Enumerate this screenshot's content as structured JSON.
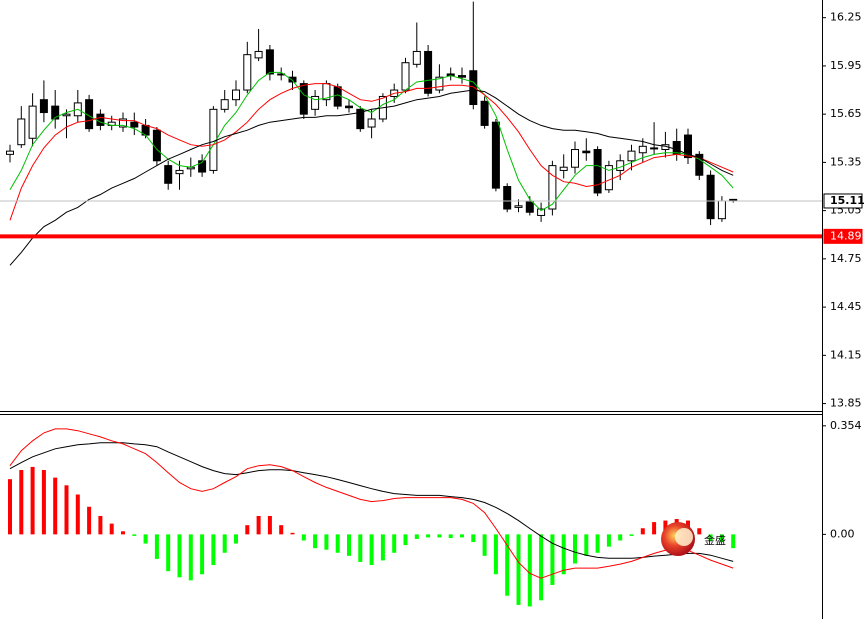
{
  "chart_data": [
    {
      "type": "candlestick",
      "ylim": [
        13.81,
        16.36
      ],
      "yticks": [
        16.25,
        15.95,
        15.65,
        15.35,
        15.05,
        14.75,
        14.45,
        14.15,
        13.85
      ],
      "up_color": "#ffffff",
      "down_color": "#000000",
      "wick_color": "#000000",
      "open": [
        15.4,
        15.46,
        15.5,
        15.74,
        15.7,
        15.64,
        15.64,
        15.74,
        15.65,
        15.58,
        15.57,
        15.6,
        15.58,
        15.55,
        15.33,
        15.28,
        15.31,
        15.36,
        15.3,
        15.68,
        15.74,
        15.8,
        16.0,
        16.05,
        15.9,
        15.88,
        15.84,
        15.68,
        15.74,
        15.82,
        15.7,
        15.68,
        15.57,
        15.62,
        15.76,
        15.8,
        15.96,
        16.04,
        15.8,
        15.9,
        15.89,
        15.92,
        15.73,
        15.6,
        15.2,
        15.07,
        15.11,
        15.02,
        15.06,
        15.3,
        15.32,
        15.42,
        15.43,
        15.18,
        15.3,
        15.36,
        15.41,
        15.44,
        15.43,
        15.48,
        15.52,
        15.4,
        15.27,
        15.0,
        15.12
      ],
      "high": [
        15.46,
        15.7,
        15.78,
        15.86,
        15.8,
        15.68,
        15.8,
        15.77,
        15.68,
        15.64,
        15.66,
        15.66,
        15.62,
        15.57,
        15.36,
        15.36,
        15.38,
        15.4,
        15.7,
        15.8,
        15.86,
        16.1,
        16.18,
        16.08,
        15.94,
        15.92,
        15.86,
        15.8,
        15.86,
        15.84,
        15.74,
        15.7,
        15.68,
        15.78,
        15.84,
        16.0,
        16.22,
        16.08,
        15.96,
        15.94,
        15.94,
        16.35,
        15.76,
        15.62,
        15.22,
        15.12,
        15.14,
        15.1,
        15.36,
        15.4,
        15.48,
        15.5,
        15.45,
        15.36,
        15.4,
        15.46,
        15.5,
        15.6,
        15.54,
        15.56,
        15.56,
        15.42,
        15.3,
        15.14,
        15.12
      ],
      "low": [
        15.35,
        15.44,
        15.45,
        15.6,
        15.56,
        15.5,
        15.6,
        15.54,
        15.55,
        15.55,
        15.54,
        15.52,
        15.5,
        15.33,
        15.18,
        15.18,
        15.26,
        15.26,
        15.28,
        15.66,
        15.7,
        15.78,
        15.98,
        15.86,
        15.86,
        15.8,
        15.62,
        15.64,
        15.7,
        15.68,
        15.66,
        15.54,
        15.5,
        15.6,
        15.72,
        15.78,
        15.94,
        15.76,
        15.78,
        15.86,
        15.84,
        15.68,
        15.56,
        15.17,
        15.04,
        15.04,
        15.02,
        14.98,
        15.02,
        15.25,
        15.28,
        15.36,
        15.14,
        15.16,
        15.24,
        15.3,
        15.35,
        15.4,
        15.38,
        15.36,
        15.34,
        15.24,
        14.96,
        14.98,
        15.1
      ],
      "close": [
        15.42,
        15.62,
        15.7,
        15.66,
        15.62,
        15.65,
        15.72,
        15.56,
        15.58,
        15.6,
        15.62,
        15.57,
        15.52,
        15.36,
        15.22,
        15.3,
        15.32,
        15.29,
        15.68,
        15.74,
        15.8,
        16.02,
        16.04,
        15.9,
        15.9,
        15.85,
        15.65,
        15.76,
        15.84,
        15.7,
        15.69,
        15.56,
        15.62,
        15.76,
        15.8,
        15.97,
        16.04,
        15.78,
        15.88,
        15.89,
        15.88,
        15.71,
        15.58,
        15.19,
        15.06,
        15.08,
        15.04,
        15.06,
        15.33,
        15.32,
        15.43,
        15.41,
        15.16,
        15.33,
        15.36,
        15.42,
        15.45,
        15.44,
        15.46,
        15.4,
        15.38,
        15.27,
        15.0,
        15.11,
        15.11
      ],
      "lines": [
        {
          "color": "#00c000",
          "values": [
            15.18,
            15.3,
            15.46,
            15.55,
            15.63,
            15.66,
            15.68,
            15.64,
            15.6,
            15.58,
            15.58,
            15.56,
            15.52,
            15.43,
            15.37,
            15.33,
            15.32,
            15.35,
            15.46,
            15.58,
            15.66,
            15.77,
            15.86,
            15.91,
            15.91,
            15.86,
            15.77,
            15.74,
            15.75,
            15.77,
            15.74,
            15.69,
            15.66,
            15.71,
            15.74,
            15.8,
            15.85,
            15.86,
            15.87,
            15.89,
            15.87,
            15.85,
            15.77,
            15.64,
            15.43,
            15.24,
            15.12,
            15.05,
            15.09,
            15.18,
            15.27,
            15.33,
            15.33,
            15.3,
            15.32,
            15.35,
            15.38,
            15.4,
            15.41,
            15.41,
            15.4,
            15.37,
            15.32,
            15.27,
            15.19
          ]
        },
        {
          "color": "#ff0000",
          "values": [
            14.99,
            15.19,
            15.33,
            15.44,
            15.52,
            15.57,
            15.6,
            15.61,
            15.63,
            15.62,
            15.61,
            15.61,
            15.58,
            15.56,
            15.52,
            15.49,
            15.46,
            15.45,
            15.46,
            15.49,
            15.54,
            15.6,
            15.68,
            15.74,
            15.78,
            15.81,
            15.83,
            15.84,
            15.84,
            15.82,
            15.78,
            15.74,
            15.73,
            15.75,
            15.78,
            15.79,
            15.81,
            15.81,
            15.82,
            15.83,
            15.83,
            15.82,
            15.77,
            15.71,
            15.63,
            15.54,
            15.43,
            15.33,
            15.27,
            15.23,
            15.22,
            15.2,
            15.21,
            15.24,
            15.27,
            15.32,
            15.35,
            15.38,
            15.39,
            15.4,
            15.39,
            15.38,
            15.35,
            15.32,
            15.29
          ]
        },
        {
          "color": "#000000",
          "values": [
            14.71,
            14.79,
            14.88,
            14.95,
            14.99,
            15.04,
            15.07,
            15.12,
            15.15,
            15.19,
            15.22,
            15.25,
            15.29,
            15.33,
            15.37,
            15.4,
            15.43,
            15.46,
            15.48,
            15.51,
            15.53,
            15.55,
            15.58,
            15.6,
            15.61,
            15.62,
            15.63,
            15.63,
            15.64,
            15.64,
            15.65,
            15.66,
            15.68,
            15.69,
            15.7,
            15.72,
            15.74,
            15.75,
            15.76,
            15.78,
            15.79,
            15.8,
            15.79,
            15.75,
            15.7,
            15.65,
            15.61,
            15.58,
            15.56,
            15.55,
            15.55,
            15.54,
            15.53,
            15.51,
            15.5,
            15.49,
            15.48,
            15.46,
            15.45,
            15.43,
            15.4,
            15.38,
            15.34,
            15.3,
            15.27
          ]
        }
      ],
      "hlines": [
        {
          "value": 15.11,
          "color": "#c0c0c0",
          "width": 1
        },
        {
          "value": 14.89,
          "color": "#ff0000",
          "width": 4
        }
      ]
    },
    {
      "type": "macd",
      "ylim": [
        -0.276,
        0.386
      ],
      "yticks": [
        0.354,
        {
          "value": 0,
          "label": "0.00"
        }
      ],
      "up_color": "#ff0000",
      "down_color": "#00ff00",
      "histogram": [
        0.18,
        0.21,
        0.22,
        0.21,
        0.185,
        0.16,
        0.13,
        0.09,
        0.06,
        0.035,
        0.01,
        -0.005,
        -0.03,
        -0.08,
        -0.12,
        -0.14,
        -0.15,
        -0.13,
        -0.1,
        -0.06,
        -0.03,
        0.03,
        0.06,
        0.06,
        0.03,
        0.005,
        -0.02,
        -0.045,
        -0.05,
        -0.06,
        -0.07,
        -0.09,
        -0.1,
        -0.085,
        -0.06,
        -0.035,
        -0.015,
        -0.01,
        -0.01,
        -0.012,
        -0.01,
        -0.025,
        -0.07,
        -0.13,
        -0.2,
        -0.23,
        -0.235,
        -0.215,
        -0.165,
        -0.13,
        -0.095,
        -0.07,
        -0.06,
        -0.04,
        -0.02,
        -0.005,
        0.02,
        0.04,
        0.045,
        0.05,
        0.045,
        0.02,
        -0.02,
        -0.025,
        -0.045
      ],
      "lines": [
        {
          "color": "#000000",
          "values": [
            0.214,
            0.234,
            0.253,
            0.266,
            0.279,
            0.286,
            0.292,
            0.295,
            0.299,
            0.299,
            0.299,
            0.295,
            0.292,
            0.286,
            0.269,
            0.253,
            0.237,
            0.221,
            0.208,
            0.198,
            0.195,
            0.201,
            0.208,
            0.211,
            0.211,
            0.208,
            0.201,
            0.195,
            0.188,
            0.179,
            0.169,
            0.159,
            0.149,
            0.14,
            0.133,
            0.13,
            0.127,
            0.127,
            0.127,
            0.123,
            0.12,
            0.114,
            0.104,
            0.088,
            0.068,
            0.045,
            0.019,
            -0.006,
            -0.029,
            -0.045,
            -0.058,
            -0.068,
            -0.075,
            -0.078,
            -0.078,
            -0.078,
            -0.075,
            -0.071,
            -0.068,
            -0.065,
            -0.062,
            -0.062,
            -0.068,
            -0.078,
            -0.088
          ]
        },
        {
          "color": "#ff0000",
          "values": [
            0.224,
            0.273,
            0.305,
            0.331,
            0.344,
            0.344,
            0.338,
            0.328,
            0.318,
            0.305,
            0.295,
            0.279,
            0.263,
            0.234,
            0.201,
            0.169,
            0.149,
            0.14,
            0.149,
            0.169,
            0.188,
            0.214,
            0.224,
            0.227,
            0.221,
            0.208,
            0.188,
            0.169,
            0.153,
            0.14,
            0.127,
            0.114,
            0.107,
            0.11,
            0.117,
            0.12,
            0.12,
            0.12,
            0.12,
            0.12,
            0.114,
            0.101,
            0.071,
            0.019,
            -0.036,
            -0.091,
            -0.127,
            -0.143,
            -0.13,
            -0.117,
            -0.11,
            -0.11,
            -0.11,
            -0.104,
            -0.097,
            -0.088,
            -0.075,
            -0.062,
            -0.052,
            -0.045,
            -0.052,
            -0.068,
            -0.084,
            -0.097,
            -0.11
          ]
        }
      ],
      "watermark": "金盛"
    }
  ]
}
